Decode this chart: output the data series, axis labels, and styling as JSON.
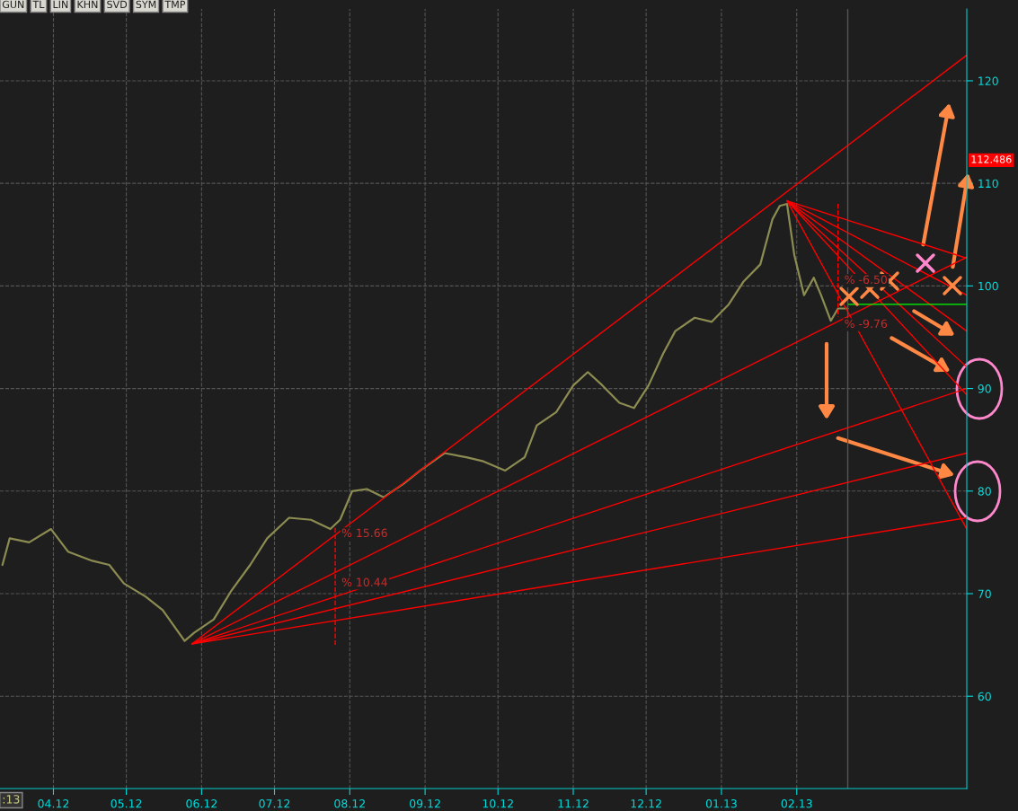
{
  "chart_data": {
    "type": "line",
    "series": [
      {
        "type": "line",
        "color": "#8c8c52",
        "x": [
          "2012-03-11",
          "2012-03-14",
          "2012-03-22",
          "2012-03-31",
          "2012-04-07",
          "2012-04-17",
          "2012-04-24",
          "2012-04-30",
          "2012-05-09",
          "2012-05-16",
          "2012-05-25",
          "2012-05-29",
          "2012-06-06",
          "2012-06-13",
          "2012-06-21",
          "2012-06-28",
          "2012-07-07",
          "2012-07-16",
          "2012-07-24",
          "2012-07-28",
          "2012-08-02",
          "2012-08-08",
          "2012-08-15",
          "2012-08-23",
          "2012-08-30",
          "2012-09-09",
          "2012-09-18",
          "2012-09-25",
          "2012-10-04",
          "2012-10-12",
          "2012-10-17",
          "2012-10-25",
          "2012-11-01",
          "2012-11-07",
          "2012-11-13",
          "2012-11-20",
          "2012-11-26",
          "2012-12-02",
          "2012-12-08",
          "2012-12-13",
          "2012-12-21",
          "2012-12-28",
          "2013-01-04",
          "2013-01-10",
          "2013-01-17",
          "2013-01-22",
          "2013-01-25",
          "2013-01-28",
          "2013-01-31",
          "2013-02-04",
          "2013-02-08",
          "2013-02-11",
          "2013-02-15",
          "2013-02-18",
          "2013-02-22"
        ],
        "values": [
          72.8,
          75.4,
          75.0,
          76.3,
          74.1,
          73.2,
          72.8,
          71.0,
          69.7,
          68.4,
          65.4,
          66.2,
          67.5,
          70.2,
          72.8,
          75.4,
          77.4,
          77.2,
          76.3,
          77.2,
          80.0,
          80.2,
          79.4,
          80.7,
          82.0,
          83.7,
          83.3,
          82.9,
          82.0,
          83.3,
          86.4,
          87.7,
          90.3,
          91.6,
          90.3,
          88.6,
          88.1,
          90.3,
          93.4,
          95.6,
          96.9,
          96.5,
          98.2,
          100.4,
          102.1,
          106.5,
          107.8,
          108.0,
          103.0,
          99.1,
          100.8,
          99.1,
          96.6,
          97.8,
          97.8
        ]
      },
      {
        "type": "line",
        "color": "#ff0000",
        "x": [
          "2012-05-28",
          "2013-04-12"
        ],
        "values": [
          65.1,
          122.5
        ]
      },
      {
        "type": "line",
        "color": "#ff0000",
        "x": [
          "2012-05-28",
          "2013-04-12"
        ],
        "values": [
          65.1,
          102.8
        ]
      },
      {
        "type": "line",
        "color": "#ff0000",
        "x": [
          "2012-05-28",
          "2013-04-12"
        ],
        "values": [
          65.1,
          90.0
        ]
      },
      {
        "type": "line",
        "color": "#ff0000",
        "x": [
          "2012-05-28",
          "2013-04-12"
        ],
        "values": [
          65.1,
          83.7
        ]
      },
      {
        "type": "line",
        "color": "#ff0000",
        "x": [
          "2012-05-28",
          "2013-04-12"
        ],
        "values": [
          65.1,
          77.4
        ]
      },
      {
        "type": "line",
        "color": "#ff0000",
        "x": [
          "2013-01-28",
          "2013-04-12"
        ],
        "values": [
          108.3,
          102.7
        ]
      },
      {
        "type": "line",
        "color": "#ff0000",
        "x": [
          "2013-01-28",
          "2013-04-12"
        ],
        "values": [
          108.3,
          99.1
        ]
      },
      {
        "type": "line",
        "color": "#ff0000",
        "x": [
          "2013-01-28",
          "2013-04-12"
        ],
        "values": [
          108.3,
          95.6
        ]
      },
      {
        "type": "line",
        "color": "#ff0000",
        "x": [
          "2013-01-28",
          "2013-04-12"
        ],
        "values": [
          108.3,
          92.1
        ]
      },
      {
        "type": "line",
        "color": "#ff0000",
        "x": [
          "2013-01-28",
          "2013-04-12"
        ],
        "values": [
          108.3,
          89.4
        ]
      },
      {
        "type": "line",
        "color": "#ff0000",
        "x": [
          "2013-01-28",
          "2013-04-12"
        ],
        "values": [
          108.3,
          76.3
        ]
      },
      {
        "type": "line",
        "color": "#00ff00",
        "x": [
          "2013-02-22",
          "2013-04-12"
        ],
        "values": [
          98.2,
          98.2
        ]
      },
      {
        "type": "line",
        "color": "#ff0000",
        "line_style": "dashed",
        "x": [
          "2012-07-26",
          "2012-07-26",
          "2012-07-26"
        ],
        "values": [
          65.0,
          71.8,
          76.6
        ]
      },
      {
        "type": "line",
        "color": "#ff0000",
        "line_style": "dashed",
        "x": [
          "2013-02-18",
          "2013-02-18",
          "2013-02-18"
        ],
        "values": [
          108.0,
          101.3,
          97.0
        ]
      }
    ],
    "xlim": [
      "2012-03-10",
      "2013-04-12"
    ],
    "xticks": [
      {
        "value": "2012-04-01",
        "label": "04.12"
      },
      {
        "value": "2012-05-01",
        "label": "05.12"
      },
      {
        "value": "2012-06-01",
        "label": "06.12"
      },
      {
        "value": "2012-07-01",
        "label": "07.12"
      },
      {
        "value": "2012-08-01",
        "label": "08.12"
      },
      {
        "value": "2012-09-01",
        "label": "09.12"
      },
      {
        "value": "2012-10-01",
        "label": "10.12"
      },
      {
        "value": "2012-11-01",
        "label": "11.12"
      },
      {
        "value": "2012-12-01",
        "label": "12.12"
      },
      {
        "value": "2013-01-01",
        "label": "01.13"
      },
      {
        "value": "2013-02-01",
        "label": "02.13"
      }
    ],
    "ylim": [
      51,
      127
    ],
    "yticks": [
      60,
      70,
      80,
      90,
      100,
      110,
      120
    ],
    "grid": true,
    "line_style": "solid",
    "ref_lines": [
      {
        "axis": "x",
        "value": "2013-02-22",
        "color": "#555555"
      }
    ],
    "annotations": [
      {
        "text": "% 15.66",
        "x": "2012-07-26",
        "y": 76.6
      },
      {
        "text": "% 10.44",
        "x": "2012-07-26",
        "y": 71.8
      },
      {
        "text": "% -6.50",
        "x": "2013-02-18",
        "y": 101.3
      },
      {
        "text": "% -9.76",
        "x": "2013-02-18",
        "y": 97.0
      },
      "GUN",
      "TL",
      "LIN",
      "KHN",
      "SVD",
      "SYM",
      "TMP",
      "112.486",
      ":13"
    ]
  }
}
